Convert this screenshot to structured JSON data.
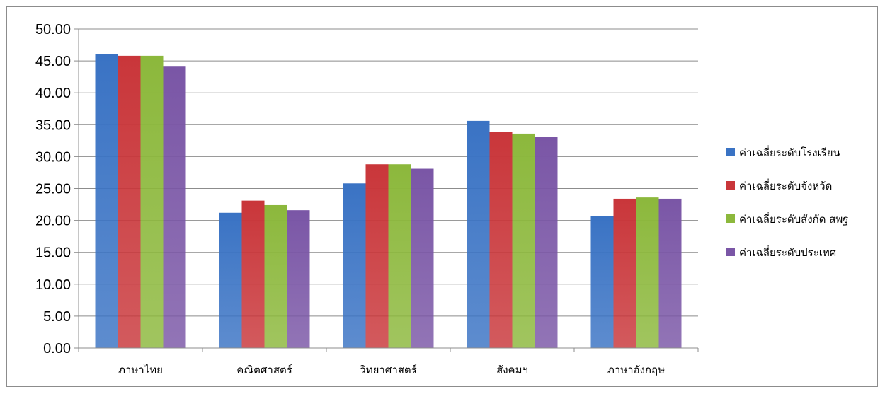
{
  "chart_data": {
    "type": "bar",
    "title": "",
    "xlabel": "",
    "ylabel": "",
    "categories": [
      "ภาษาไทย",
      "คณิตศาสตร์",
      "วิทยาศาสตร์",
      "สังคมฯ",
      "ภาษาอังกฤษ"
    ],
    "series": [
      {
        "name": "ค่าเฉลี่ยระดับโรงเรียน",
        "color": "#3a73c4",
        "values": [
          46.1,
          21.2,
          25.8,
          35.6,
          20.7
        ]
      },
      {
        "name": "ค่าเฉลี่ยระดับจังหวัด",
        "color": "#c9363a",
        "values": [
          45.8,
          23.1,
          28.8,
          33.9,
          23.4
        ]
      },
      {
        "name": "ค่าเฉลี่ยระดับสังกัด สพฐ",
        "color": "#8cb83c",
        "values": [
          45.8,
          22.4,
          28.8,
          33.6,
          23.6
        ]
      },
      {
        "name": "ค่าเฉลี่ยระดับประเทศ",
        "color": "#7a56a6",
        "values": [
          44.1,
          21.6,
          28.1,
          33.1,
          23.4
        ]
      }
    ],
    "ylim": [
      0,
      50
    ],
    "yticks": [
      "0.00",
      "5.00",
      "10.00",
      "15.00",
      "20.00",
      "25.00",
      "30.00",
      "35.00",
      "40.00",
      "45.00",
      "50.00"
    ],
    "grid": true,
    "legend_position": "right"
  }
}
